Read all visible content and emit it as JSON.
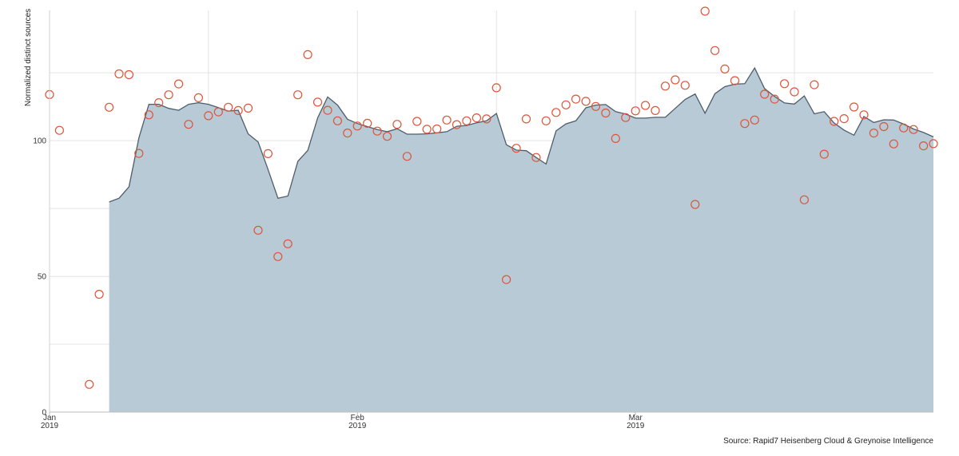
{
  "chart_data": {
    "type": "area",
    "ylabel": "Normalized distinct sources",
    "ylim": [
      0,
      148
    ],
    "yticks": [
      0,
      50,
      100
    ],
    "ygrid": [
      25,
      50,
      75,
      100,
      125
    ],
    "x_range": [
      "2019-01-01",
      "2019-03-31"
    ],
    "xticks": [
      {
        "date": "2019-01-01",
        "label": "Jan",
        "sublabel": "2019"
      },
      {
        "date": "2019-02-01",
        "label": "Feb",
        "sublabel": "2019"
      },
      {
        "date": "2019-03-01",
        "label": "Mar",
        "sublabel": "2019"
      }
    ],
    "xgrid_dates": [
      "2019-01-01",
      "2019-01-17",
      "2019-02-01",
      "2019-02-15",
      "2019-03-01",
      "2019-03-17"
    ],
    "grid": true,
    "colors": {
      "area_fill": "#b7cad6",
      "area_line": "#4f5d6b",
      "points": "#e0543a"
    },
    "series": [
      {
        "type": "area",
        "x": [
          "2019-01-07",
          "2019-01-08",
          "2019-01-09",
          "2019-01-10",
          "2019-01-11",
          "2019-01-12",
          "2019-01-13",
          "2019-01-14",
          "2019-01-15",
          "2019-01-16",
          "2019-01-17",
          "2019-01-18",
          "2019-01-19",
          "2019-01-20",
          "2019-01-21",
          "2019-01-22",
          "2019-01-23",
          "2019-01-24",
          "2019-01-25",
          "2019-01-26",
          "2019-01-27",
          "2019-01-28",
          "2019-01-29",
          "2019-01-30",
          "2019-01-31",
          "2019-02-01",
          "2019-02-02",
          "2019-02-03",
          "2019-02-04",
          "2019-02-05",
          "2019-02-06",
          "2019-02-07",
          "2019-02-08",
          "2019-02-09",
          "2019-02-10",
          "2019-02-11",
          "2019-02-12",
          "2019-02-13",
          "2019-02-14",
          "2019-02-15",
          "2019-02-16",
          "2019-02-17",
          "2019-02-18",
          "2019-02-19",
          "2019-02-20",
          "2019-02-21",
          "2019-02-22",
          "2019-02-23",
          "2019-02-24",
          "2019-02-25",
          "2019-02-26",
          "2019-02-27",
          "2019-02-28",
          "2019-03-01",
          "2019-03-02",
          "2019-03-03",
          "2019-03-04",
          "2019-03-05",
          "2019-03-06",
          "2019-03-07",
          "2019-03-08",
          "2019-03-09",
          "2019-03-10",
          "2019-03-11",
          "2019-03-12",
          "2019-03-13",
          "2019-03-14",
          "2019-03-15",
          "2019-03-16",
          "2019-03-17",
          "2019-03-18",
          "2019-03-19",
          "2019-03-20",
          "2019-03-21",
          "2019-03-22",
          "2019-03-23",
          "2019-03-24",
          "2019-03-25",
          "2019-03-26",
          "2019-03-27",
          "2019-03-28",
          "2019-03-29",
          "2019-03-30",
          "2019-03-31"
        ],
        "values": [
          77.4,
          78.8,
          83,
          101,
          113.4,
          113.4,
          111.9,
          111.2,
          113.4,
          114,
          113.4,
          112.2,
          110.9,
          111.2,
          102.5,
          99.5,
          89.4,
          78.8,
          79.6,
          92.4,
          96.4,
          108.4,
          116.1,
          113.1,
          107.9,
          106.3,
          105.2,
          104.1,
          103.3,
          104.4,
          102.4,
          102.4,
          102.5,
          102.9,
          103.3,
          105.3,
          105.6,
          106.6,
          107.3,
          110,
          98.5,
          96.5,
          96.3,
          93.8,
          91.4,
          103.6,
          106.2,
          107.3,
          112.1,
          113.1,
          113.3,
          110.7,
          109.8,
          108.3,
          108.3,
          108.6,
          108.6,
          111.9,
          115.2,
          117.2,
          110.1,
          117.3,
          119.9,
          120.8,
          121,
          126.8,
          119.2,
          116.3,
          113.9,
          113.5,
          116.5,
          109.9,
          110.7,
          106.5,
          103.9,
          102,
          108.9,
          106.7,
          107.7,
          107.6,
          106.1,
          104.3,
          103,
          101.4
        ]
      },
      {
        "type": "scatter",
        "x": [
          "2019-01-01",
          "2019-01-02",
          "2019-01-05",
          "2019-01-06",
          "2019-01-07",
          "2019-01-08",
          "2019-01-09",
          "2019-01-10",
          "2019-01-11",
          "2019-01-12",
          "2019-01-13",
          "2019-01-14",
          "2019-01-15",
          "2019-01-16",
          "2019-01-17",
          "2019-01-18",
          "2019-01-19",
          "2019-01-20",
          "2019-01-21",
          "2019-01-22",
          "2019-01-23",
          "2019-01-24",
          "2019-01-25",
          "2019-01-26",
          "2019-01-27",
          "2019-01-28",
          "2019-01-29",
          "2019-01-30",
          "2019-01-31",
          "2019-02-01",
          "2019-02-02",
          "2019-02-03",
          "2019-02-04",
          "2019-02-05",
          "2019-02-06",
          "2019-02-07",
          "2019-02-08",
          "2019-02-09",
          "2019-02-10",
          "2019-02-11",
          "2019-02-12",
          "2019-02-13",
          "2019-02-14",
          "2019-02-15",
          "2019-02-16",
          "2019-02-17",
          "2019-02-18",
          "2019-02-19",
          "2019-02-20",
          "2019-02-21",
          "2019-02-22",
          "2019-02-23",
          "2019-02-24",
          "2019-02-25",
          "2019-02-26",
          "2019-02-27",
          "2019-02-28",
          "2019-03-01",
          "2019-03-02",
          "2019-03-03",
          "2019-03-04",
          "2019-03-05",
          "2019-03-06",
          "2019-03-07",
          "2019-03-08",
          "2019-03-09",
          "2019-03-10",
          "2019-03-11",
          "2019-03-12",
          "2019-03-13",
          "2019-03-14",
          "2019-03-15",
          "2019-03-16",
          "2019-03-17",
          "2019-03-18",
          "2019-03-19",
          "2019-03-20",
          "2019-03-21",
          "2019-03-22",
          "2019-03-23",
          "2019-03-24",
          "2019-03-25",
          "2019-03-26",
          "2019-03-27",
          "2019-03-28",
          "2019-03-29",
          "2019-03-30",
          "2019-03-31"
        ],
        "values": [
          117,
          103.8,
          10.2,
          43.4,
          112.3,
          124.6,
          124.3,
          95.3,
          109.5,
          114,
          116.9,
          120.9,
          106,
          115.8,
          109.2,
          110.6,
          112.3,
          111.1,
          112,
          67,
          95.2,
          57.3,
          62,
          116.9,
          131.7,
          114.2,
          111.2,
          107.3,
          102.8,
          105.4,
          106.4,
          103.5,
          101.6,
          106,
          94.2,
          107.1,
          104.2,
          104.3,
          107.6,
          105.9,
          107.3,
          108.4,
          108,
          119.5,
          48.8,
          97.2,
          108,
          93.8,
          107.3,
          110.4,
          113.2,
          115.3,
          114.5,
          112.6,
          110.2,
          100.8,
          108.5,
          111,
          113,
          111.1,
          120.1,
          122.4,
          120.4,
          76.5,
          147.7,
          133.2,
          126.4,
          122.1,
          106.3,
          107.6,
          117.1,
          115.3,
          121,
          118,
          78.2,
          120.6,
          95,
          107.1,
          108.1,
          112.4,
          109.5,
          102.8,
          105.2,
          98.8,
          104.7,
          104.1,
          98.1,
          98.9
        ]
      }
    ],
    "source": "Source: Rapid7 Heisenberg Cloud & Greynoise Intelligence"
  }
}
